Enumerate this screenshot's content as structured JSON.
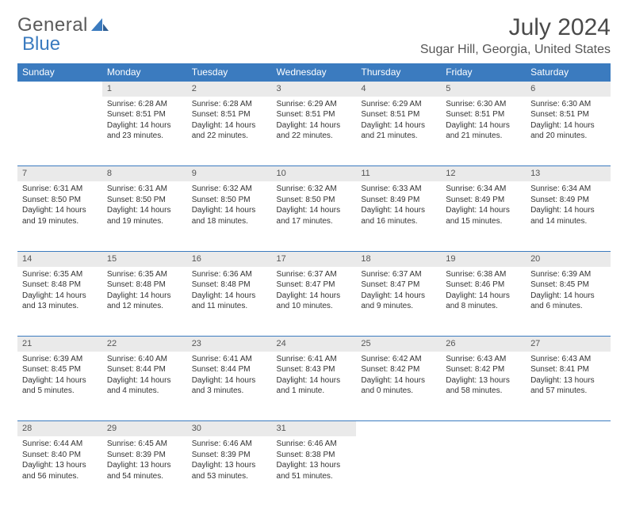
{
  "brand": {
    "part1": "General",
    "part2": "Blue"
  },
  "title": "July 2024",
  "location": "Sugar Hill, Georgia, United States",
  "colors": {
    "header_bg": "#3b7bbf",
    "header_text": "#ffffff",
    "daynum_bg": "#eaeaea",
    "rule": "#3b7bbf",
    "text": "#333333",
    "page_bg": "#ffffff"
  },
  "weekdays": [
    "Sunday",
    "Monday",
    "Tuesday",
    "Wednesday",
    "Thursday",
    "Friday",
    "Saturday"
  ],
  "first_weekday_index": 1,
  "days": [
    {
      "n": 1,
      "sunrise": "6:28 AM",
      "sunset": "8:51 PM",
      "daylight": "14 hours and 23 minutes."
    },
    {
      "n": 2,
      "sunrise": "6:28 AM",
      "sunset": "8:51 PM",
      "daylight": "14 hours and 22 minutes."
    },
    {
      "n": 3,
      "sunrise": "6:29 AM",
      "sunset": "8:51 PM",
      "daylight": "14 hours and 22 minutes."
    },
    {
      "n": 4,
      "sunrise": "6:29 AM",
      "sunset": "8:51 PM",
      "daylight": "14 hours and 21 minutes."
    },
    {
      "n": 5,
      "sunrise": "6:30 AM",
      "sunset": "8:51 PM",
      "daylight": "14 hours and 21 minutes."
    },
    {
      "n": 6,
      "sunrise": "6:30 AM",
      "sunset": "8:51 PM",
      "daylight": "14 hours and 20 minutes."
    },
    {
      "n": 7,
      "sunrise": "6:31 AM",
      "sunset": "8:50 PM",
      "daylight": "14 hours and 19 minutes."
    },
    {
      "n": 8,
      "sunrise": "6:31 AM",
      "sunset": "8:50 PM",
      "daylight": "14 hours and 19 minutes."
    },
    {
      "n": 9,
      "sunrise": "6:32 AM",
      "sunset": "8:50 PM",
      "daylight": "14 hours and 18 minutes."
    },
    {
      "n": 10,
      "sunrise": "6:32 AM",
      "sunset": "8:50 PM",
      "daylight": "14 hours and 17 minutes."
    },
    {
      "n": 11,
      "sunrise": "6:33 AM",
      "sunset": "8:49 PM",
      "daylight": "14 hours and 16 minutes."
    },
    {
      "n": 12,
      "sunrise": "6:34 AM",
      "sunset": "8:49 PM",
      "daylight": "14 hours and 15 minutes."
    },
    {
      "n": 13,
      "sunrise": "6:34 AM",
      "sunset": "8:49 PM",
      "daylight": "14 hours and 14 minutes."
    },
    {
      "n": 14,
      "sunrise": "6:35 AM",
      "sunset": "8:48 PM",
      "daylight": "14 hours and 13 minutes."
    },
    {
      "n": 15,
      "sunrise": "6:35 AM",
      "sunset": "8:48 PM",
      "daylight": "14 hours and 12 minutes."
    },
    {
      "n": 16,
      "sunrise": "6:36 AM",
      "sunset": "8:48 PM",
      "daylight": "14 hours and 11 minutes."
    },
    {
      "n": 17,
      "sunrise": "6:37 AM",
      "sunset": "8:47 PM",
      "daylight": "14 hours and 10 minutes."
    },
    {
      "n": 18,
      "sunrise": "6:37 AM",
      "sunset": "8:47 PM",
      "daylight": "14 hours and 9 minutes."
    },
    {
      "n": 19,
      "sunrise": "6:38 AM",
      "sunset": "8:46 PM",
      "daylight": "14 hours and 8 minutes."
    },
    {
      "n": 20,
      "sunrise": "6:39 AM",
      "sunset": "8:45 PM",
      "daylight": "14 hours and 6 minutes."
    },
    {
      "n": 21,
      "sunrise": "6:39 AM",
      "sunset": "8:45 PM",
      "daylight": "14 hours and 5 minutes."
    },
    {
      "n": 22,
      "sunrise": "6:40 AM",
      "sunset": "8:44 PM",
      "daylight": "14 hours and 4 minutes."
    },
    {
      "n": 23,
      "sunrise": "6:41 AM",
      "sunset": "8:44 PM",
      "daylight": "14 hours and 3 minutes."
    },
    {
      "n": 24,
      "sunrise": "6:41 AM",
      "sunset": "8:43 PM",
      "daylight": "14 hours and 1 minute."
    },
    {
      "n": 25,
      "sunrise": "6:42 AM",
      "sunset": "8:42 PM",
      "daylight": "14 hours and 0 minutes."
    },
    {
      "n": 26,
      "sunrise": "6:43 AM",
      "sunset": "8:42 PM",
      "daylight": "13 hours and 58 minutes."
    },
    {
      "n": 27,
      "sunrise": "6:43 AM",
      "sunset": "8:41 PM",
      "daylight": "13 hours and 57 minutes."
    },
    {
      "n": 28,
      "sunrise": "6:44 AM",
      "sunset": "8:40 PM",
      "daylight": "13 hours and 56 minutes."
    },
    {
      "n": 29,
      "sunrise": "6:45 AM",
      "sunset": "8:39 PM",
      "daylight": "13 hours and 54 minutes."
    },
    {
      "n": 30,
      "sunrise": "6:46 AM",
      "sunset": "8:39 PM",
      "daylight": "13 hours and 53 minutes."
    },
    {
      "n": 31,
      "sunrise": "6:46 AM",
      "sunset": "8:38 PM",
      "daylight": "13 hours and 51 minutes."
    }
  ],
  "labels": {
    "sunrise_prefix": "Sunrise: ",
    "sunset_prefix": "Sunset: ",
    "daylight_prefix": "Daylight: "
  }
}
